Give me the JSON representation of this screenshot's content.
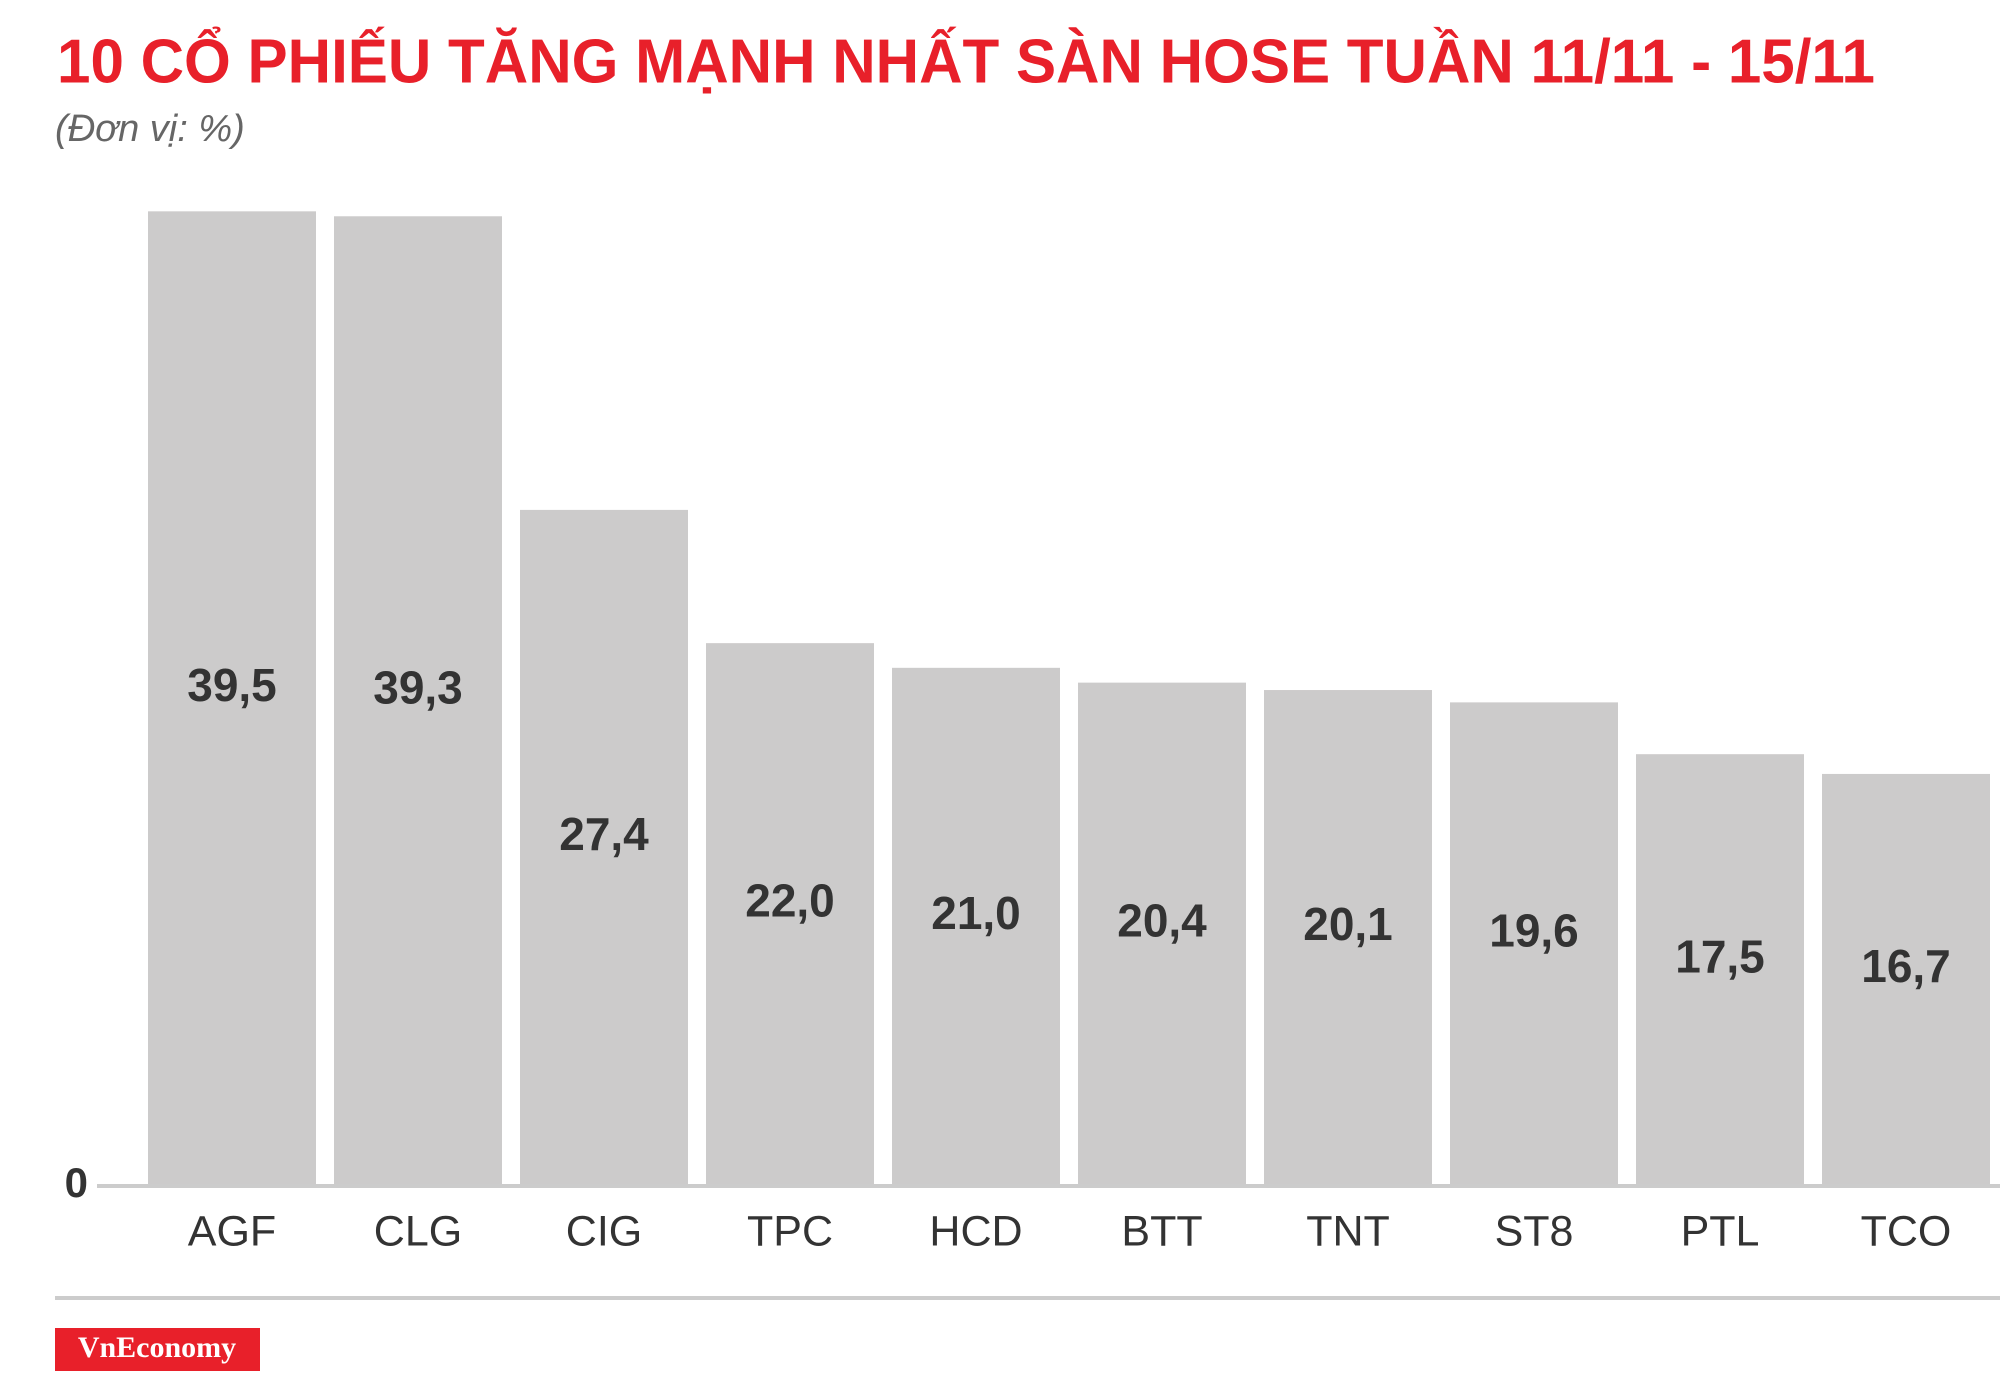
{
  "chart_data": {
    "type": "bar",
    "title": "10 CỔ PHIẾU TĂNG MẠNH NHẤT SÀN HOSE TUẦN 11/11 - 15/11",
    "subtitle": "(Đơn vị: %)",
    "categories": [
      "AGF",
      "CLG",
      "CIG",
      "TPC",
      "HCD",
      "BTT",
      "TNT",
      "ST8",
      "PTL",
      "TCO"
    ],
    "values": [
      39.5,
      39.3,
      27.4,
      22.0,
      21.0,
      20.4,
      20.1,
      19.6,
      17.5,
      16.7
    ],
    "value_labels": [
      "39,5",
      "39,3",
      "27,4",
      "22,0",
      "21,0",
      "20,4",
      "20,1",
      "19,6",
      "17,5",
      "16,7"
    ],
    "color": "#cccbcb",
    "ylim": [
      0,
      40
    ],
    "yticks": [
      0
    ],
    "source": "VnEconomy"
  }
}
